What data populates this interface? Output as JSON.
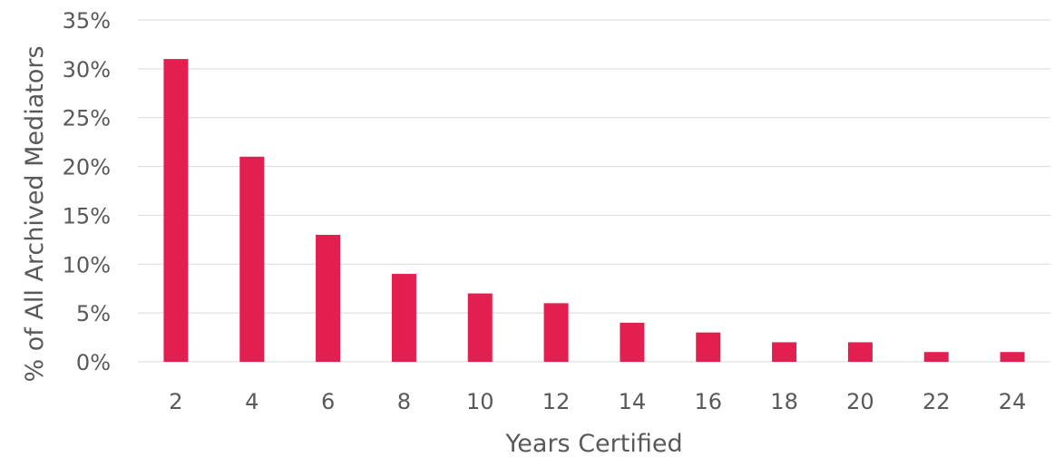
{
  "chart_data": {
    "type": "bar",
    "categories": [
      "2",
      "4",
      "6",
      "8",
      "10",
      "12",
      "14",
      "16",
      "18",
      "20",
      "22",
      "24"
    ],
    "values": [
      31,
      21,
      13,
      9,
      7,
      6,
      4,
      3,
      2,
      2,
      1,
      1
    ],
    "xlabel": "Years Certified",
    "ylabel": "% of All Archived Mediators",
    "ylim": [
      0,
      35
    ],
    "yticks": [
      0,
      5,
      10,
      15,
      20,
      25,
      30,
      35
    ],
    "ytick_labels": [
      "0%",
      "5%",
      "10%",
      "15%",
      "20%",
      "25%",
      "30%",
      "35%"
    ],
    "bar_color": "#e31f4f",
    "grid": true
  }
}
